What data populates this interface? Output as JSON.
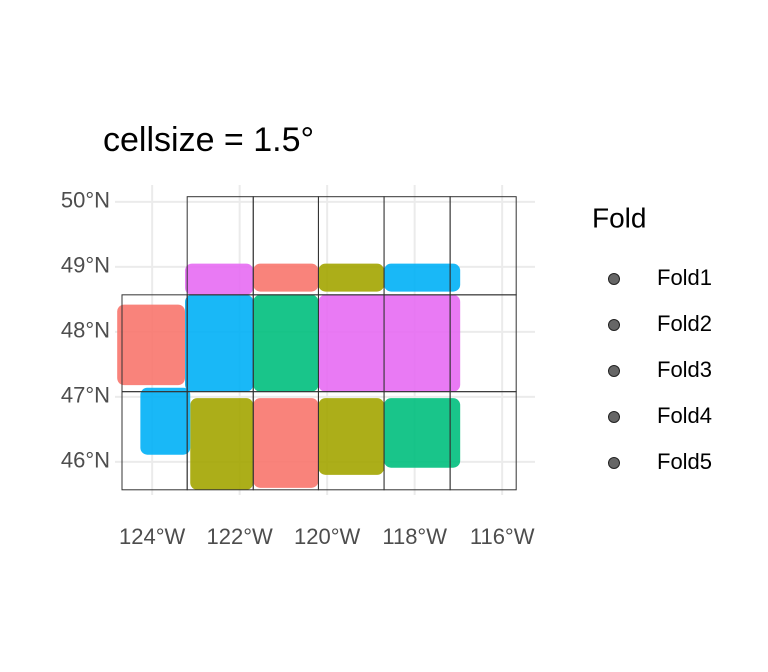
{
  "chart_data": {
    "type": "map",
    "title": "cellsize = 1.5°",
    "legend_title": "Fold",
    "legend_marker_color": "#555555",
    "grid": true,
    "xlim": [
      -124.85,
      -115.25
    ],
    "ylim": [
      45.49,
      50.26
    ],
    "xticks": [
      {
        "value": -124,
        "label": "124°W"
      },
      {
        "value": -122,
        "label": "122°W"
      },
      {
        "value": -120,
        "label": "120°W"
      },
      {
        "value": -118,
        "label": "118°W"
      },
      {
        "value": -116,
        "label": "116°W"
      }
    ],
    "yticks": [
      {
        "value": 46,
        "label": "46°N"
      },
      {
        "value": 47,
        "label": "47°N"
      },
      {
        "value": 48,
        "label": "48°N"
      },
      {
        "value": 49,
        "label": "49°N"
      },
      {
        "value": 50,
        "label": "50°N"
      }
    ],
    "series": [
      {
        "name": "Fold1",
        "color": "#F8766D",
        "regions": [
          {
            "x": [
              -124.8,
              -123.25
            ],
            "y": [
              47.18,
              48.42
            ]
          },
          {
            "x": [
              -121.69,
              -120.2
            ],
            "y": [
              48.62,
              49.05
            ]
          },
          {
            "x": [
              -121.69,
              -120.2
            ],
            "y": [
              45.6,
              46.98
            ]
          }
        ]
      },
      {
        "name": "Fold2",
        "color": "#A3A500",
        "regions": [
          {
            "x": [
              -120.2,
              -118.7
            ],
            "y": [
              48.62,
              49.05
            ]
          },
          {
            "x": [
              -123.13,
              -121.69
            ],
            "y": [
              45.57,
              46.98
            ]
          },
          {
            "x": [
              -120.2,
              -118.7
            ],
            "y": [
              45.8,
              46.98
            ]
          }
        ]
      },
      {
        "name": "Fold3",
        "color": "#00BF7D",
        "regions": [
          {
            "x": [
              -121.69,
              -120.2
            ],
            "y": [
              47.08,
              48.57
            ]
          },
          {
            "x": [
              -118.7,
              -116.96
            ],
            "y": [
              45.91,
              46.98
            ]
          }
        ]
      },
      {
        "name": "Fold4",
        "color": "#00B0F6",
        "regions": [
          {
            "x": [
              -118.7,
              -116.96
            ],
            "y": [
              48.62,
              49.05
            ]
          },
          {
            "x": [
              -123.25,
              -121.69
            ],
            "y": [
              47.08,
              48.57
            ]
          },
          {
            "x": [
              -124.27,
              -123.13
            ],
            "y": [
              46.11,
              47.14
            ]
          }
        ]
      },
      {
        "name": "Fold5",
        "color": "#E76BF3",
        "regions": [
          {
            "x": [
              -123.25,
              -121.69
            ],
            "y": [
              48.57,
              49.05
            ]
          },
          {
            "x": [
              -120.2,
              -116.96
            ],
            "y": [
              47.08,
              48.57
            ]
          }
        ]
      }
    ],
    "cells": [
      {
        "x": [
          -123.2,
          -121.69
        ],
        "y": [
          48.57,
          50.08
        ]
      },
      {
        "x": [
          -121.69,
          -120.2
        ],
        "y": [
          48.57,
          50.08
        ]
      },
      {
        "x": [
          -120.2,
          -118.7
        ],
        "y": [
          48.57,
          50.08
        ]
      },
      {
        "x": [
          -118.7,
          -117.19
        ],
        "y": [
          48.57,
          50.08
        ]
      },
      {
        "x": [
          -117.19,
          -115.68
        ],
        "y": [
          48.57,
          50.08
        ]
      },
      {
        "x": [
          -124.69,
          -123.2
        ],
        "y": [
          47.08,
          48.57
        ]
      },
      {
        "x": [
          -123.2,
          -121.69
        ],
        "y": [
          47.08,
          48.57
        ]
      },
      {
        "x": [
          -121.69,
          -120.2
        ],
        "y": [
          47.08,
          48.57
        ]
      },
      {
        "x": [
          -120.2,
          -118.7
        ],
        "y": [
          47.08,
          48.57
        ]
      },
      {
        "x": [
          -118.7,
          -117.19
        ],
        "y": [
          47.08,
          48.57
        ]
      },
      {
        "x": [
          -117.19,
          -115.68
        ],
        "y": [
          47.08,
          48.57
        ]
      },
      {
        "x": [
          -124.69,
          -123.2
        ],
        "y": [
          45.57,
          47.08
        ]
      },
      {
        "x": [
          -123.2,
          -121.69
        ],
        "y": [
          45.57,
          47.08
        ]
      },
      {
        "x": [
          -121.69,
          -120.2
        ],
        "y": [
          45.57,
          47.08
        ]
      },
      {
        "x": [
          -120.2,
          -118.7
        ],
        "y": [
          45.57,
          47.08
        ]
      },
      {
        "x": [
          -118.7,
          -117.19
        ],
        "y": [
          45.57,
          47.08
        ]
      },
      {
        "x": [
          -117.19,
          -115.68
        ],
        "y": [
          45.57,
          47.08
        ]
      }
    ]
  }
}
